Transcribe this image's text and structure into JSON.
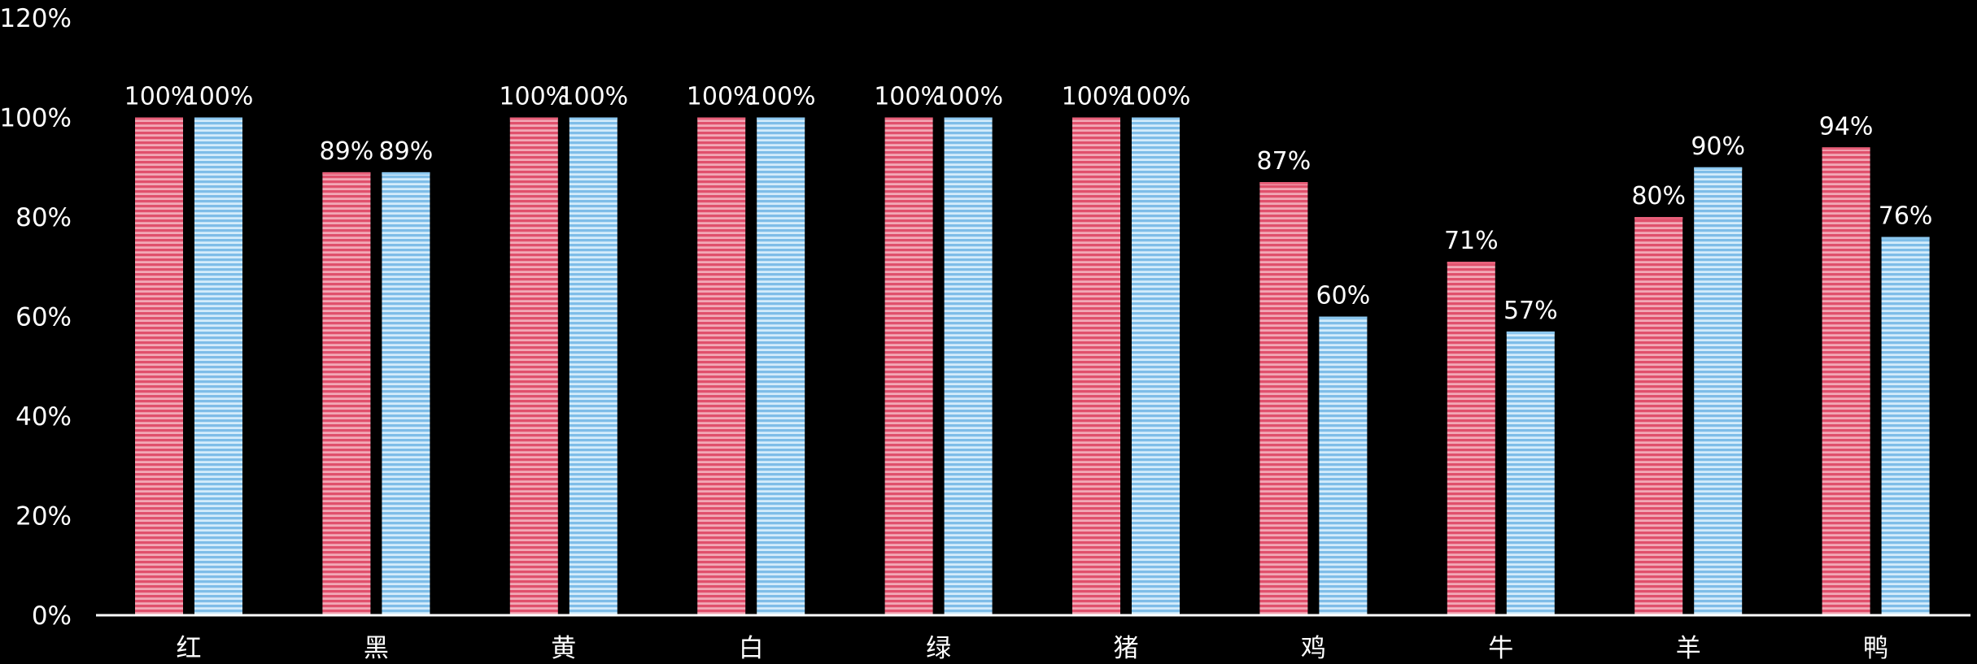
{
  "chart_data": {
    "type": "bar",
    "categories": [
      "红",
      "黑",
      "黄",
      "白",
      "绿",
      "猪",
      "鸡",
      "牛",
      "羊",
      "鸭"
    ],
    "series": [
      {
        "color": "#e8607a",
        "values": [
          100,
          89,
          100,
          100,
          100,
          100,
          87,
          71,
          80,
          94
        ],
        "labels": [
          "100%",
          "89%",
          "100%",
          "100%",
          "100%",
          "100%",
          "87%",
          "71%",
          "80%",
          "94%"
        ]
      },
      {
        "color": "#8cc8f0",
        "values": [
          100,
          89,
          100,
          100,
          100,
          100,
          60,
          57,
          90,
          76
        ],
        "labels": [
          "100%",
          "89%",
          "100%",
          "100%",
          "100%",
          "100%",
          "60%",
          "57%",
          "90%",
          "76%"
        ]
      }
    ],
    "ylim": [
      0,
      120
    ],
    "yticks": [
      0,
      20,
      40,
      60,
      80,
      100,
      120
    ],
    "ytick_labels": [
      "0%",
      "20%",
      "40%",
      "60%",
      "80%",
      "100%",
      "120%"
    ],
    "grid": false,
    "legend": "none",
    "bar_style": "horizontal-striped",
    "colors": {
      "background": "#000000",
      "axis": "#ffffff",
      "text": "#ffffff"
    }
  }
}
